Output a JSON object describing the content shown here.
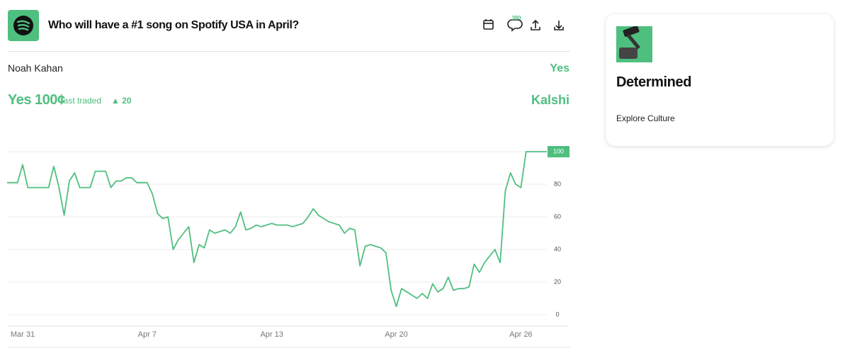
{
  "header": {
    "title": "Who will have a #1 song on Spotify USA in April?",
    "comment_count": 380
  },
  "market": {
    "outcome": "Noah Kahan",
    "side": "Yes",
    "price_label": "Yes 100¢",
    "last_traded": "last traded",
    "change": "▲ 20",
    "source": "Kalshi"
  },
  "chart_data": {
    "type": "line",
    "categories": [
      null,
      null,
      null,
      "Mar 31",
      null,
      null,
      null,
      null,
      null,
      null,
      null,
      null,
      null,
      null,
      null,
      null,
      null,
      null,
      null,
      null,
      null,
      null,
      null,
      null,
      null,
      null,
      null,
      "Apr 7",
      null,
      null,
      null,
      null,
      null,
      null,
      null,
      null,
      null,
      null,
      null,
      null,
      null,
      null,
      null,
      null,
      null,
      null,
      null,
      null,
      null,
      null,
      null,
      "Apr 13",
      null,
      null,
      null,
      null,
      null,
      null,
      null,
      null,
      null,
      null,
      null,
      null,
      null,
      null,
      null,
      null,
      null,
      null,
      null,
      null,
      null,
      null,
      null,
      "Apr 20",
      null,
      null,
      null,
      null,
      null,
      null,
      null,
      null,
      null,
      null,
      null,
      null,
      null,
      null,
      null,
      null,
      null,
      null,
      null,
      null,
      null,
      null,
      null,
      "Apr 26",
      null,
      null,
      null,
      null,
      null
    ],
    "series": [
      {
        "name": "Noah Kahan",
        "color": "#4fbf7f",
        "values": [
          81,
          81,
          81,
          92,
          78,
          78,
          78,
          78,
          78,
          91,
          78,
          61,
          82,
          87,
          78,
          78,
          78,
          88,
          88,
          88,
          78,
          82,
          82,
          84,
          84,
          81,
          81,
          81,
          74,
          62,
          59,
          60,
          40,
          46,
          50,
          54,
          32,
          43,
          41,
          52,
          50,
          51,
          52,
          50,
          54,
          63,
          52,
          53,
          55,
          54,
          55,
          56,
          55,
          55,
          55,
          54,
          55,
          56,
          60,
          65,
          61,
          59,
          57,
          56,
          55,
          50,
          53,
          52,
          30,
          42,
          43,
          42,
          41,
          38,
          15,
          5,
          16,
          14,
          12,
          10,
          13,
          10,
          19,
          14,
          16,
          23,
          15,
          16,
          16,
          17,
          31,
          26,
          32,
          36,
          40,
          32,
          76,
          87,
          80,
          78,
          100,
          100,
          100,
          100,
          100
        ]
      }
    ],
    "ylim": [
      0,
      100
    ],
    "yticks": [
      0,
      20,
      40,
      60,
      80,
      100
    ],
    "grid": true
  },
  "card": {
    "status": "Determined",
    "link": "Explore Culture"
  }
}
